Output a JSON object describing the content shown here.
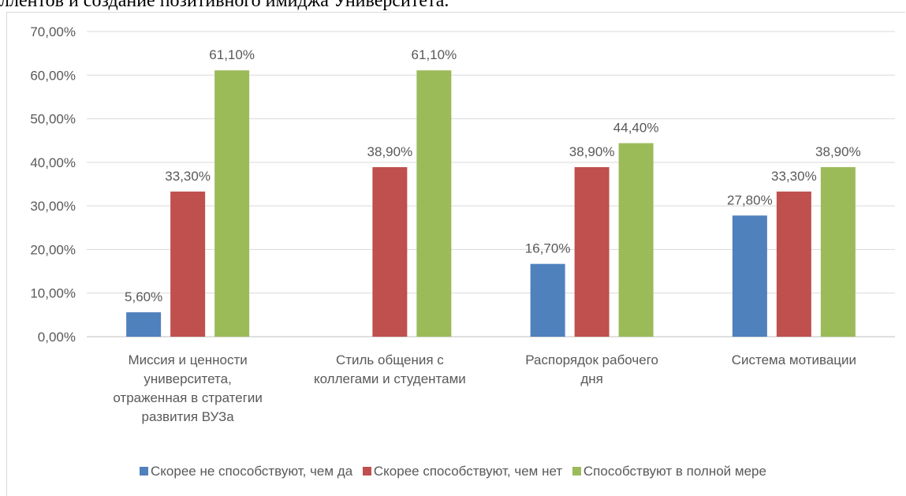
{
  "page_header_text": "ллентов и создание позитивного имиджа Университета.",
  "chart_data": {
    "type": "bar",
    "categories": [
      [
        "Миссия и ценности",
        "университета,",
        "отраженная в стратегии",
        "развития ВУЗа"
      ],
      [
        "Стиль общения с",
        "коллегами и студентами"
      ],
      [
        "Распорядок рабочего",
        "дня"
      ],
      [
        "Система мотивации"
      ]
    ],
    "series": [
      {
        "name": "Скорее не способствуют, чем да",
        "color": "#4f81bd",
        "values": [
          5.6,
          0,
          16.7,
          27.8
        ],
        "labels": [
          "5,60%",
          "",
          "16,70%",
          "27,80%"
        ]
      },
      {
        "name": "Скорее способствуют, чем нет",
        "color": "#c0504d",
        "values": [
          33.3,
          38.9,
          38.9,
          33.3
        ],
        "labels": [
          "33,30%",
          "38,90%",
          "38,90%",
          "33,30%"
        ]
      },
      {
        "name": "Способствуют в полной мере",
        "color": "#9bbb59",
        "values": [
          61.1,
          61.1,
          44.4,
          38.9
        ],
        "labels": [
          "61,10%",
          "61,10%",
          "44,40%",
          "38,90%"
        ]
      }
    ],
    "ylim": [
      0,
      70
    ],
    "yticks": [
      "0,00%",
      "10,00%",
      "20,00%",
      "30,00%",
      "40,00%",
      "50,00%",
      "60,00%",
      "70,00%"
    ],
    "grid": true,
    "legend": "bottom"
  }
}
